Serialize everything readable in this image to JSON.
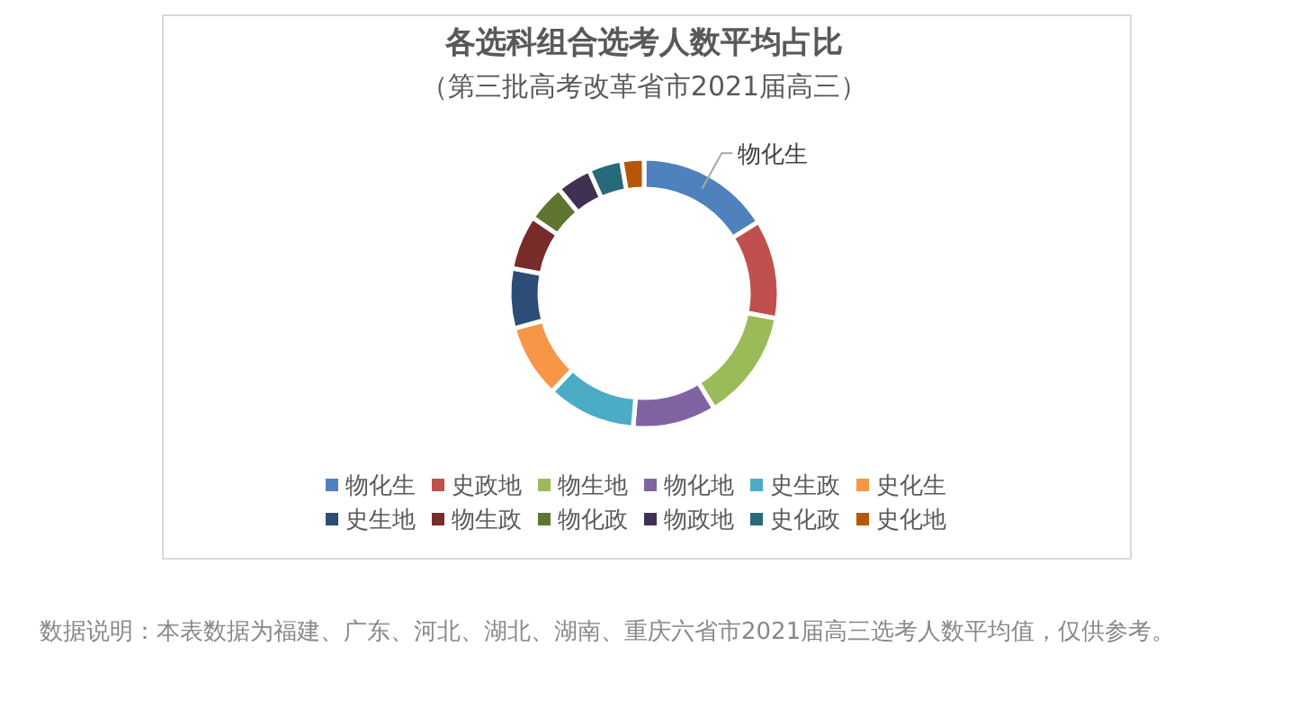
{
  "chart_data": {
    "type": "donut",
    "title": "各选科组合选考人数平均占比",
    "subtitle": "（第三批高考改革省市2021届高三）",
    "categories": [
      "物化生",
      "史政地",
      "物生地",
      "物化地",
      "史生政",
      "史化生",
      "史生地",
      "物生政",
      "物化政",
      "物政地",
      "史化政",
      "史化地"
    ],
    "values": [
      16.1,
      11.9,
      13.3,
      10.0,
      10.7,
      8.8,
      7.2,
      6.5,
      4.6,
      4.2,
      4.0,
      2.7
    ],
    "colors": [
      "#4f81bd",
      "#c0504d",
      "#9bbb59",
      "#8064a2",
      "#4bacc6",
      "#f79646",
      "#2c4d75",
      "#772c2a",
      "#5f7530",
      "#403152",
      "#276a7c",
      "#b65708"
    ],
    "legend": "bottom",
    "annotations": [
      {
        "text": "物化生",
        "x": "物化生"
      },
      "数据说明：本表数据为福建、广东、河北、湖北、湖南、重庆六省市2021届高三选考人数平均值，仅供参考。"
    ]
  }
}
